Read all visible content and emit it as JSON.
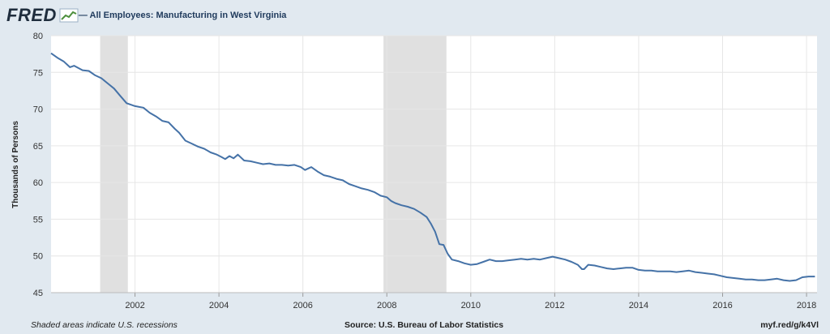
{
  "header": {
    "logo_text": "FRED",
    "logo_icon": "trend-chart-icon",
    "legend_label": "— All Employees: Manufacturing in West Virginia"
  },
  "colors": {
    "background": "#e1e9f0",
    "plot_background": "#ffffff",
    "series": "#4572a7",
    "recession": "#e0e0e0",
    "grid": "#e6e6e6"
  },
  "footer": {
    "left": "Shaded areas indicate U.S. recessions",
    "source": "Source: U.S. Bureau of Labor Statistics",
    "link": "myf.red/g/k4Vl"
  },
  "chart_data": {
    "type": "line",
    "title": "",
    "ylabel": "Thousands of Persons",
    "xlabel": "",
    "xlim": [
      2000.0,
      2018.25
    ],
    "ylim": [
      45,
      80
    ],
    "yticks": [
      45,
      50,
      55,
      60,
      65,
      70,
      75,
      80
    ],
    "xticks": [
      2002,
      2004,
      2006,
      2008,
      2010,
      2012,
      2014,
      2016,
      2018
    ],
    "grid": true,
    "legend": "top-left",
    "recessions": [
      [
        2001.17,
        2001.83
      ],
      [
        2007.92,
        2009.42
      ]
    ],
    "series": [
      {
        "name": "All Employees: Manufacturing in West Virginia",
        "x": [
          2000.0,
          2000.15,
          2000.3,
          2000.45,
          2000.55,
          2000.75,
          2000.9,
          2001.05,
          2001.2,
          2001.35,
          2001.5,
          2001.65,
          2001.8,
          2002.0,
          2002.1,
          2002.2,
          2002.35,
          2002.5,
          2002.65,
          2002.8,
          2002.95,
          2003.05,
          2003.2,
          2003.35,
          2003.5,
          2003.65,
          2003.8,
          2003.95,
          2004.05,
          2004.15,
          2004.25,
          2004.35,
          2004.45,
          2004.6,
          2004.75,
          2004.9,
          2005.05,
          2005.2,
          2005.35,
          2005.5,
          2005.65,
          2005.8,
          2005.95,
          2006.05,
          2006.2,
          2006.35,
          2006.5,
          2006.65,
          2006.8,
          2006.95,
          2007.1,
          2007.25,
          2007.4,
          2007.55,
          2007.7,
          2007.85,
          2008.0,
          2008.1,
          2008.2,
          2008.35,
          2008.5,
          2008.65,
          2008.8,
          2008.95,
          2009.05,
          2009.15,
          2009.25,
          2009.35,
          2009.45,
          2009.55,
          2009.7,
          2009.85,
          2010.0,
          2010.15,
          2010.3,
          2010.45,
          2010.6,
          2010.75,
          2010.9,
          2011.05,
          2011.2,
          2011.35,
          2011.5,
          2011.65,
          2011.8,
          2011.95,
          2012.1,
          2012.25,
          2012.4,
          2012.55,
          2012.65,
          2012.7,
          2012.8,
          2012.95,
          2013.1,
          2013.25,
          2013.4,
          2013.55,
          2013.7,
          2013.85,
          2014.0,
          2014.15,
          2014.3,
          2014.45,
          2014.6,
          2014.75,
          2014.9,
          2015.05,
          2015.2,
          2015.35,
          2015.5,
          2015.65,
          2015.8,
          2015.95,
          2016.1,
          2016.25,
          2016.4,
          2016.55,
          2016.7,
          2016.85,
          2017.0,
          2017.15,
          2017.3,
          2017.45,
          2017.6,
          2017.75,
          2017.9,
          2018.05,
          2018.2
        ],
        "values": [
          77.6,
          77.0,
          76.5,
          75.7,
          75.9,
          75.3,
          75.2,
          74.6,
          74.2,
          73.5,
          72.8,
          71.8,
          70.8,
          70.4,
          70.3,
          70.2,
          69.5,
          69.0,
          68.4,
          68.2,
          67.3,
          66.8,
          65.7,
          65.3,
          64.9,
          64.6,
          64.1,
          63.8,
          63.5,
          63.2,
          63.6,
          63.3,
          63.8,
          63.0,
          62.9,
          62.7,
          62.5,
          62.6,
          62.4,
          62.4,
          62.3,
          62.4,
          62.1,
          61.7,
          62.1,
          61.5,
          61.0,
          60.8,
          60.5,
          60.3,
          59.8,
          59.5,
          59.2,
          59.0,
          58.7,
          58.2,
          58.0,
          57.5,
          57.2,
          56.9,
          56.7,
          56.4,
          55.9,
          55.3,
          54.4,
          53.3,
          51.6,
          51.5,
          50.3,
          49.5,
          49.3,
          49.0,
          48.8,
          48.9,
          49.2,
          49.5,
          49.3,
          49.3,
          49.4,
          49.5,
          49.6,
          49.5,
          49.6,
          49.5,
          49.7,
          49.9,
          49.7,
          49.5,
          49.2,
          48.8,
          48.2,
          48.2,
          48.8,
          48.7,
          48.5,
          48.3,
          48.2,
          48.3,
          48.4,
          48.4,
          48.1,
          48.0,
          48.0,
          47.9,
          47.9,
          47.9,
          47.8,
          47.9,
          48.0,
          47.8,
          47.7,
          47.6,
          47.5,
          47.3,
          47.1,
          47.0,
          46.9,
          46.8,
          46.8,
          46.7,
          46.7,
          46.8,
          46.9,
          46.7,
          46.6,
          46.7,
          47.1,
          47.2,
          47.2
        ]
      }
    ]
  }
}
